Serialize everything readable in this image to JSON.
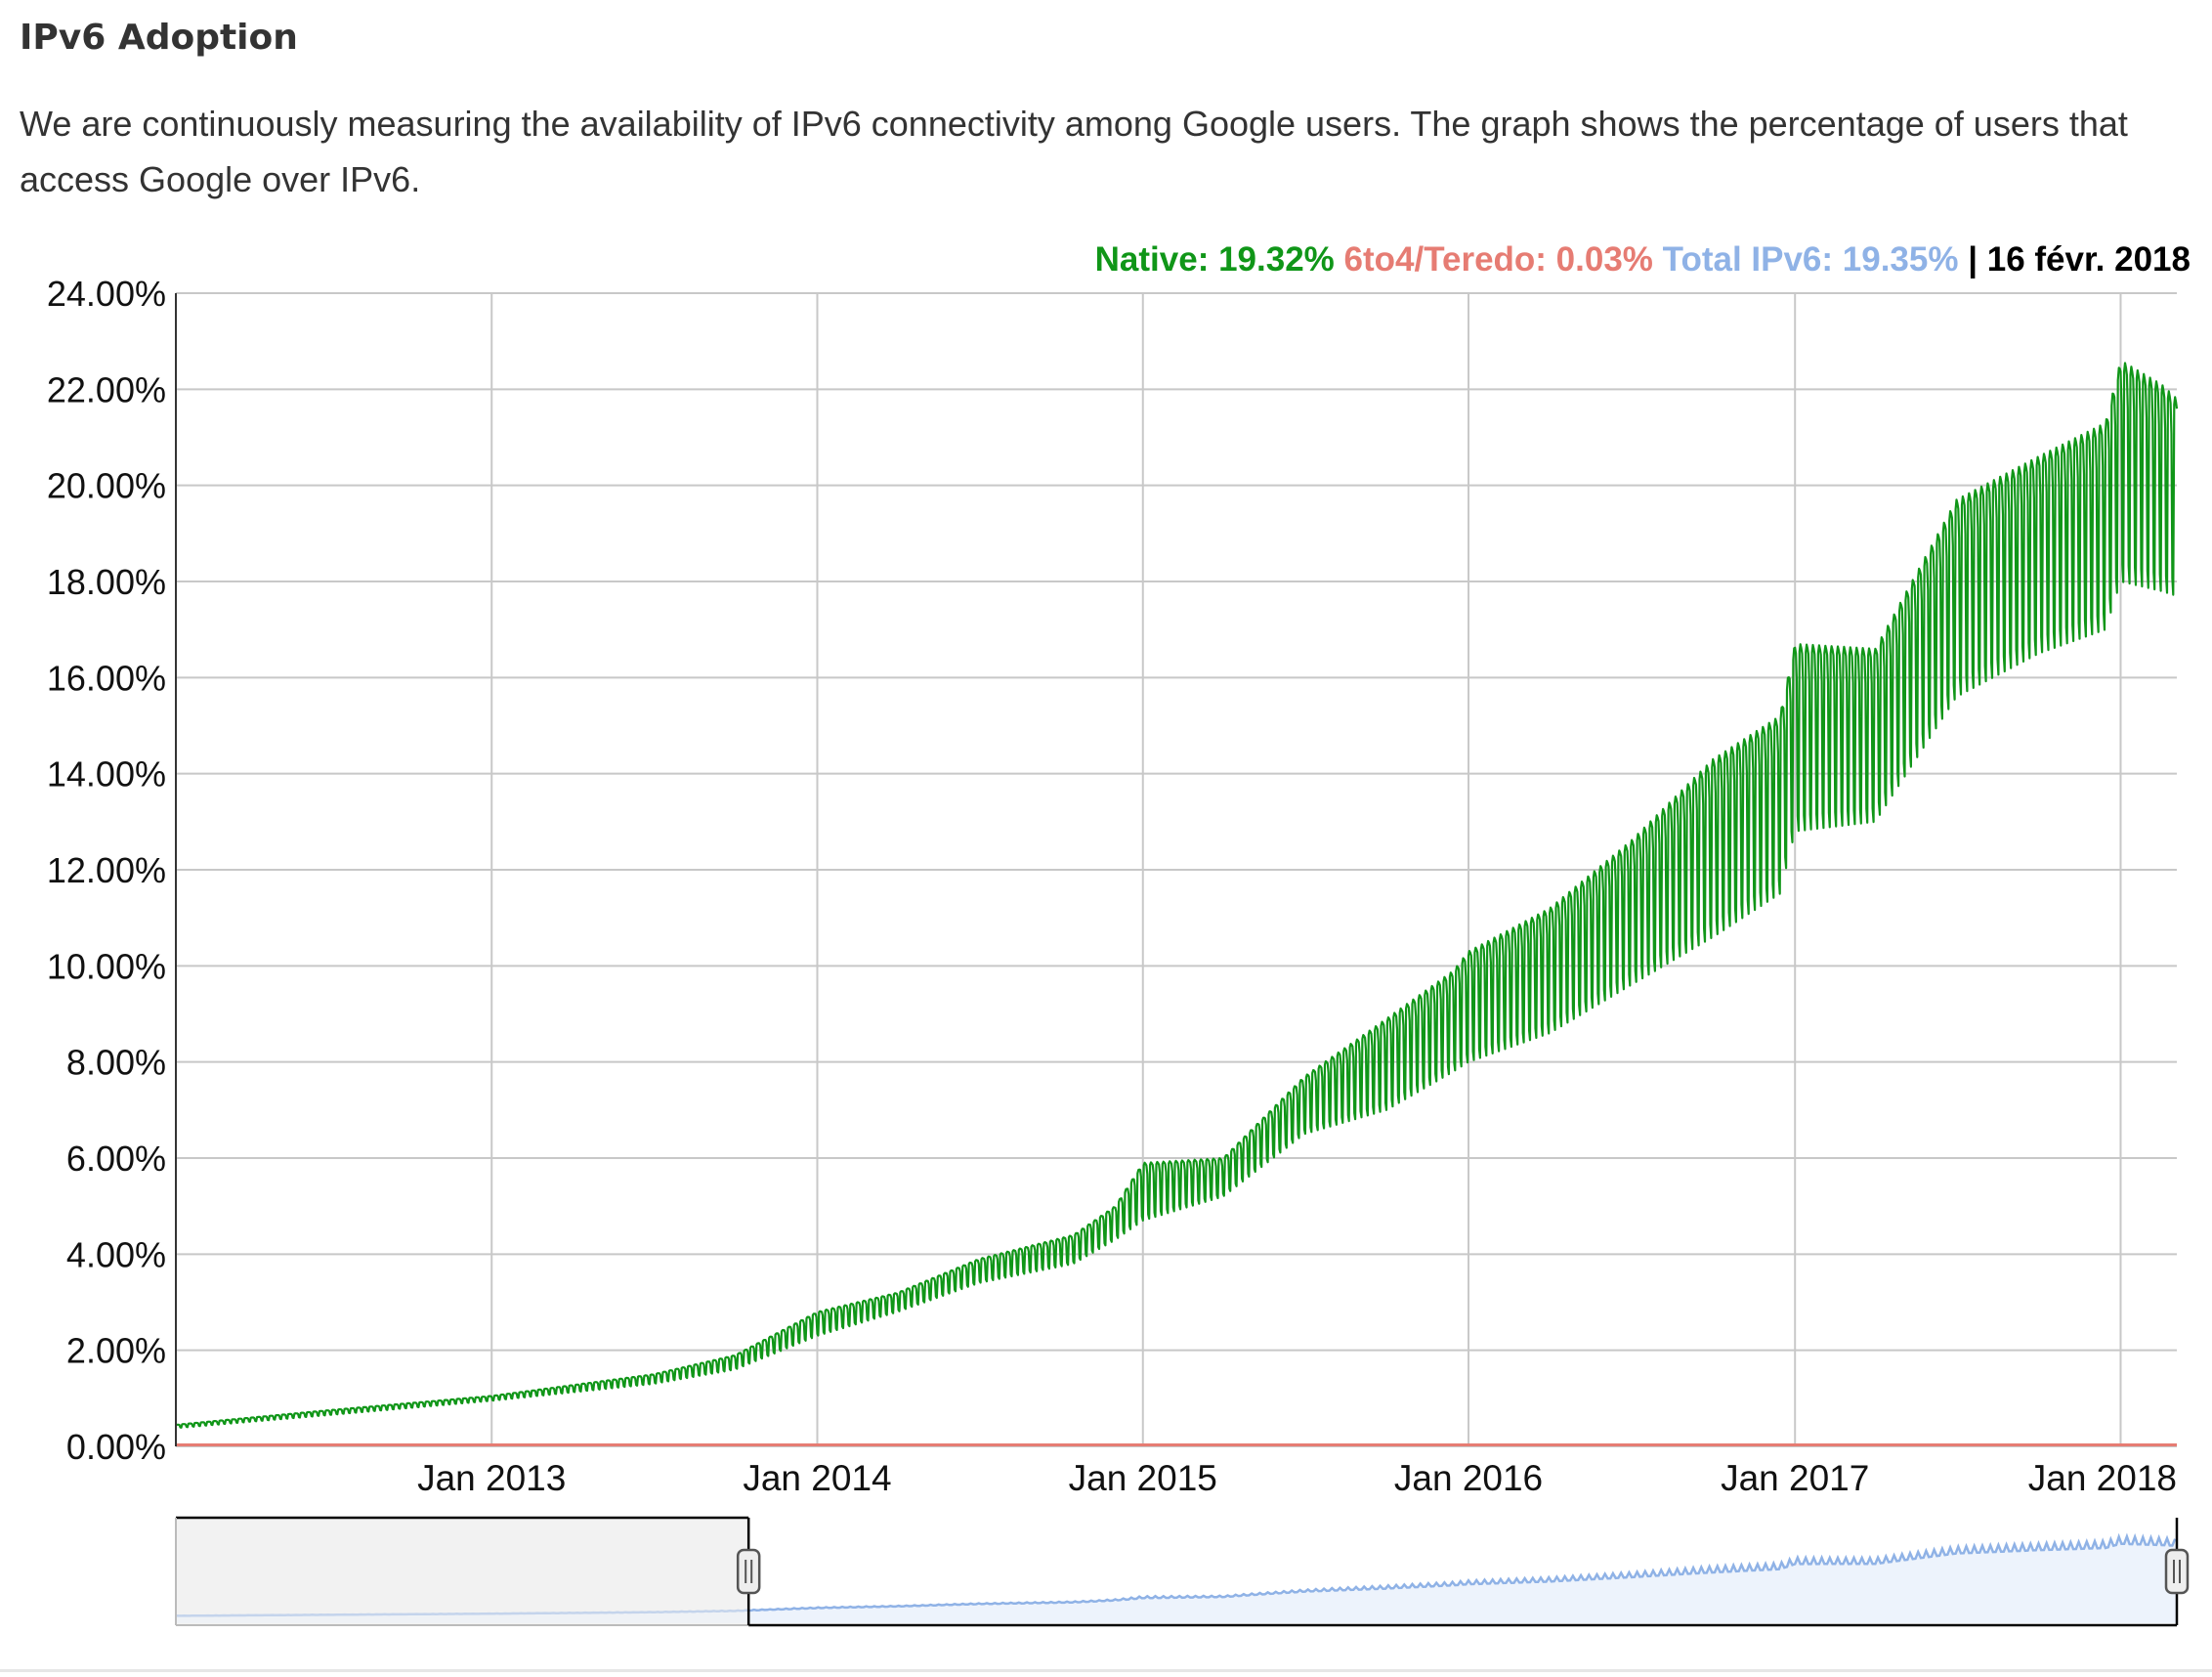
{
  "page": {
    "title": "IPv6 Adoption",
    "description": "We are continuously measuring the availability of IPv6 connectivity among Google users. The graph shows the percentage of users that access Google over IPv6."
  },
  "readout": {
    "native_label": "Native: 19.32%",
    "teredo_label": "6to4/Teredo: 0.03%",
    "total_label": "Total IPv6: 19.35%",
    "separator": "|",
    "date": "16 févr. 2018"
  },
  "colors": {
    "native": "#109618",
    "teredo": "#e67c73",
    "total": "#8fb2e6",
    "grid": "#c8c8c8"
  },
  "chart_data": {
    "type": "line",
    "title": "",
    "xlabel": "",
    "ylabel": "",
    "x_range": [
      "2012-01-13",
      "2018-03-05"
    ],
    "ylim": [
      0,
      24
    ],
    "grid": true,
    "x_ticks": [
      {
        "date": "2013-01-01",
        "label": "Jan 2013"
      },
      {
        "date": "2014-01-01",
        "label": "Jan 2014"
      },
      {
        "date": "2015-01-01",
        "label": "Jan 2015"
      },
      {
        "date": "2016-01-01",
        "label": "Jan 2016"
      },
      {
        "date": "2017-01-01",
        "label": "Jan 2017"
      },
      {
        "date": "2018-01-01",
        "label": "Jan 2018"
      }
    ],
    "y_ticks": [
      {
        "value": 0,
        "label": "0.00%"
      },
      {
        "value": 2,
        "label": "2.00%"
      },
      {
        "value": 4,
        "label": "4.00%"
      },
      {
        "value": 6,
        "label": "6.00%"
      },
      {
        "value": 8,
        "label": "8.00%"
      },
      {
        "value": 10,
        "label": "10.00%"
      },
      {
        "value": 12,
        "label": "12.00%"
      },
      {
        "value": 14,
        "label": "14.00%"
      },
      {
        "value": 16,
        "label": "16.00%"
      },
      {
        "value": 18,
        "label": "18.00%"
      },
      {
        "value": 20,
        "label": "20.00%"
      },
      {
        "value": 22,
        "label": "22.00%"
      },
      {
        "value": 24,
        "label": "24.00%"
      }
    ],
    "series": [
      {
        "name": "Native",
        "upper": [
          [
            "2012-01-13",
            0.45
          ],
          [
            "2012-07-01",
            0.75
          ],
          [
            "2013-01-01",
            1.05
          ],
          [
            "2013-07-01",
            1.5
          ],
          [
            "2013-10-01",
            1.9
          ],
          [
            "2014-01-01",
            2.8
          ],
          [
            "2014-04-01",
            3.2
          ],
          [
            "2014-07-01",
            3.9
          ],
          [
            "2014-10-15",
            4.4
          ],
          [
            "2014-12-01",
            5.0
          ],
          [
            "2015-01-01",
            5.9
          ],
          [
            "2015-04-01",
            6.0
          ],
          [
            "2015-07-01",
            7.7
          ],
          [
            "2015-10-01",
            8.9
          ],
          [
            "2015-12-15",
            9.9
          ],
          [
            "2016-01-01",
            10.3
          ],
          [
            "2016-04-01",
            11.2
          ],
          [
            "2016-07-01",
            12.6
          ],
          [
            "2016-10-01",
            14.3
          ],
          [
            "2016-12-15",
            15.2
          ],
          [
            "2017-01-01",
            16.7
          ],
          [
            "2017-04-01",
            16.6
          ],
          [
            "2017-07-01",
            19.7
          ],
          [
            "2017-10-01",
            20.6
          ],
          [
            "2017-12-15",
            21.3
          ],
          [
            "2018-01-01",
            22.6
          ],
          [
            "2018-02-16",
            22.1
          ],
          [
            "2018-03-05",
            21.8
          ]
        ],
        "lower": [
          [
            "2012-01-13",
            0.38
          ],
          [
            "2012-07-01",
            0.65
          ],
          [
            "2013-01-01",
            0.95
          ],
          [
            "2013-07-01",
            1.3
          ],
          [
            "2013-10-01",
            1.6
          ],
          [
            "2014-01-01",
            2.3
          ],
          [
            "2014-04-01",
            2.8
          ],
          [
            "2014-07-01",
            3.4
          ],
          [
            "2014-10-15",
            3.8
          ],
          [
            "2014-12-01",
            4.3
          ],
          [
            "2015-01-01",
            4.7
          ],
          [
            "2015-04-01",
            5.2
          ],
          [
            "2015-07-01",
            6.5
          ],
          [
            "2015-10-01",
            7.0
          ],
          [
            "2015-12-15",
            7.8
          ],
          [
            "2016-01-01",
            8.0
          ],
          [
            "2016-04-01",
            8.6
          ],
          [
            "2016-07-01",
            9.6
          ],
          [
            "2016-10-01",
            10.6
          ],
          [
            "2016-12-15",
            11.5
          ],
          [
            "2017-01-01",
            12.8
          ],
          [
            "2017-04-01",
            13.0
          ],
          [
            "2017-07-01",
            15.6
          ],
          [
            "2017-10-01",
            16.5
          ],
          [
            "2017-12-15",
            17.0
          ],
          [
            "2018-01-01",
            18.0
          ],
          [
            "2018-02-16",
            17.8
          ],
          [
            "2018-03-05",
            17.7
          ]
        ]
      },
      {
        "name": "6to4/Teredo",
        "values": [
          [
            "2012-01-13",
            0.03
          ],
          [
            "2018-03-05",
            0.03
          ]
        ]
      }
    ],
    "navigator": {
      "selected_range": [
        "2013-10-16",
        "2018-03-05"
      ]
    }
  }
}
